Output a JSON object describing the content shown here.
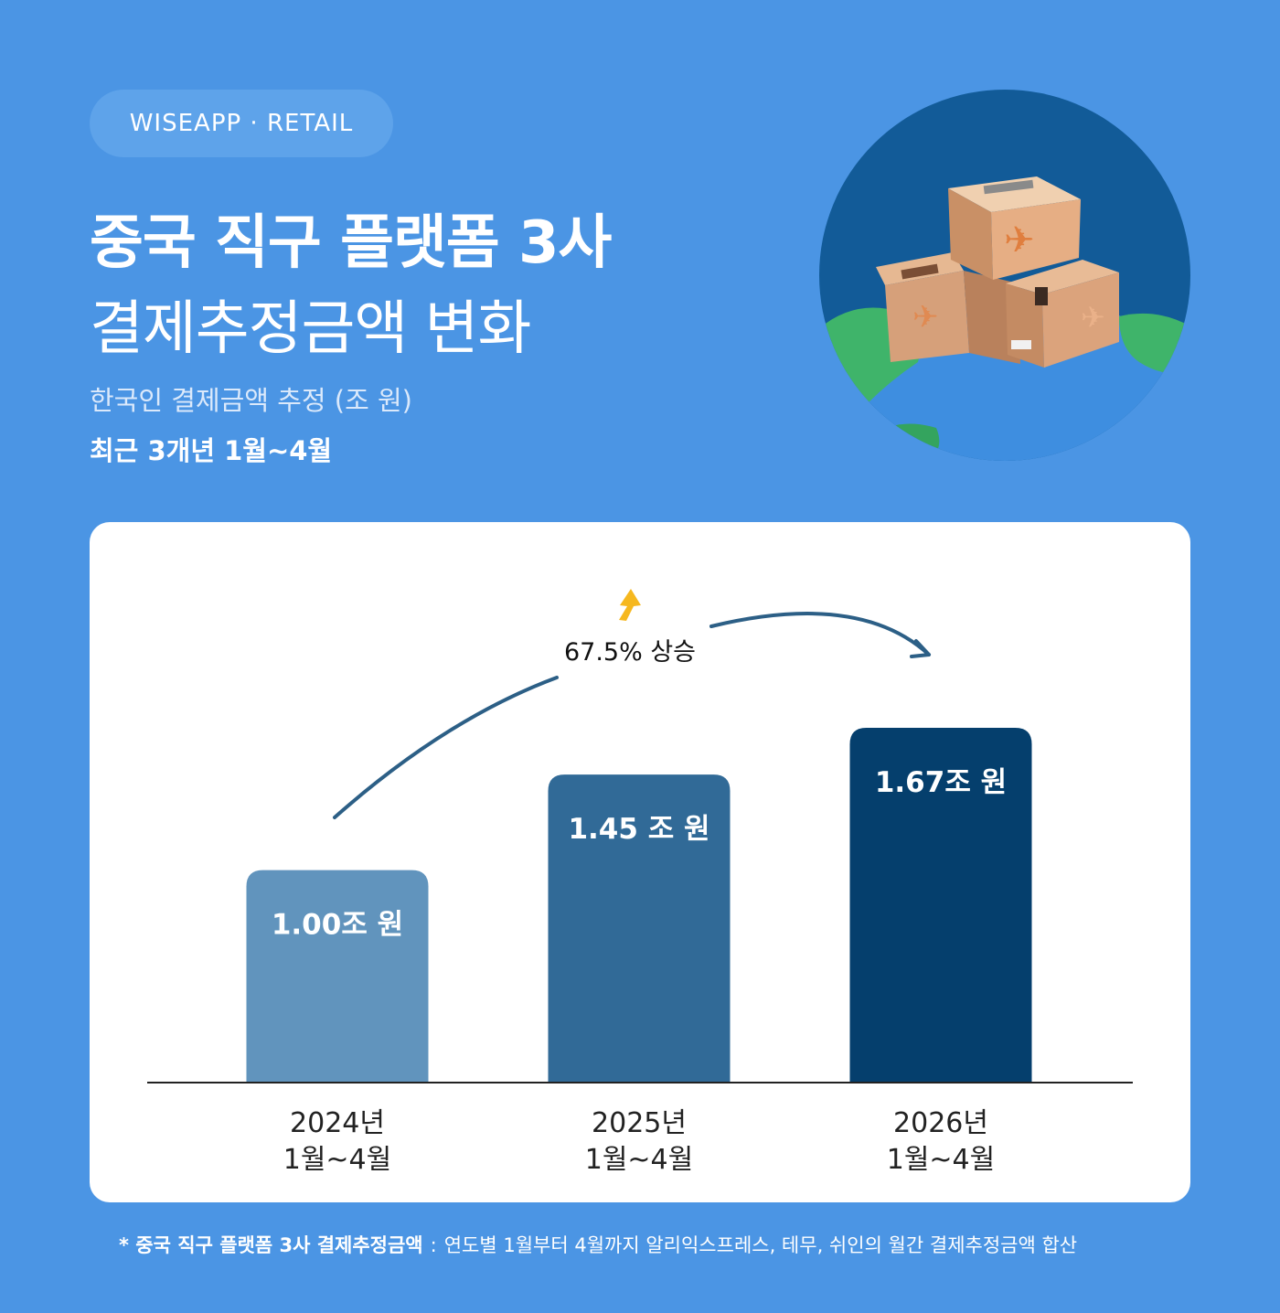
{
  "brand": "WISEAPP · RETAIL",
  "title": {
    "line1": "중국 직구 플랫폼 3사",
    "line2": "결제추정금액 변화"
  },
  "subtitle": {
    "line1": "한국인 결제금액 추정 (조 원)",
    "line2": "최근 3개년 1월~4월"
  },
  "colors": {
    "background": "#4b95e4",
    "card": "#ffffff",
    "bar_2024": "#6194bd",
    "bar_2025": "#316a97",
    "bar_2026": "#053f6d",
    "arrow": "#2c5f86",
    "up_icon": "#f6b81f"
  },
  "hero_icon": "boxes-on-globe-illustration",
  "chart_data": {
    "type": "bar",
    "categories": [
      [
        "2024년",
        "1월~4월"
      ],
      [
        "2025년",
        "1월~4월"
      ],
      [
        "2026년",
        "1월~4월"
      ]
    ],
    "values": [
      1.0,
      1.45,
      1.67
    ],
    "data_labels": [
      "1.00조 원",
      "1.45 조 원",
      "1.67조 원"
    ],
    "bar_colors": [
      "#6194bd",
      "#316a97",
      "#053f6d"
    ],
    "unit": "조 원",
    "ylim": [
      0,
      2.38
    ],
    "grid": false,
    "annotation": {
      "text": "67.5% 상승",
      "icon": "up-arrow-icon",
      "from_category": 0,
      "to_category": 2
    }
  },
  "footnote": {
    "bold": "* 중국 직구 플랫폼 3사 결제추정금액",
    "separator": ":",
    "text": "연도별 1월부터 4월까지 알리익스프레스, 테무, 쉬인의 월간 결제추정금액 합산"
  }
}
